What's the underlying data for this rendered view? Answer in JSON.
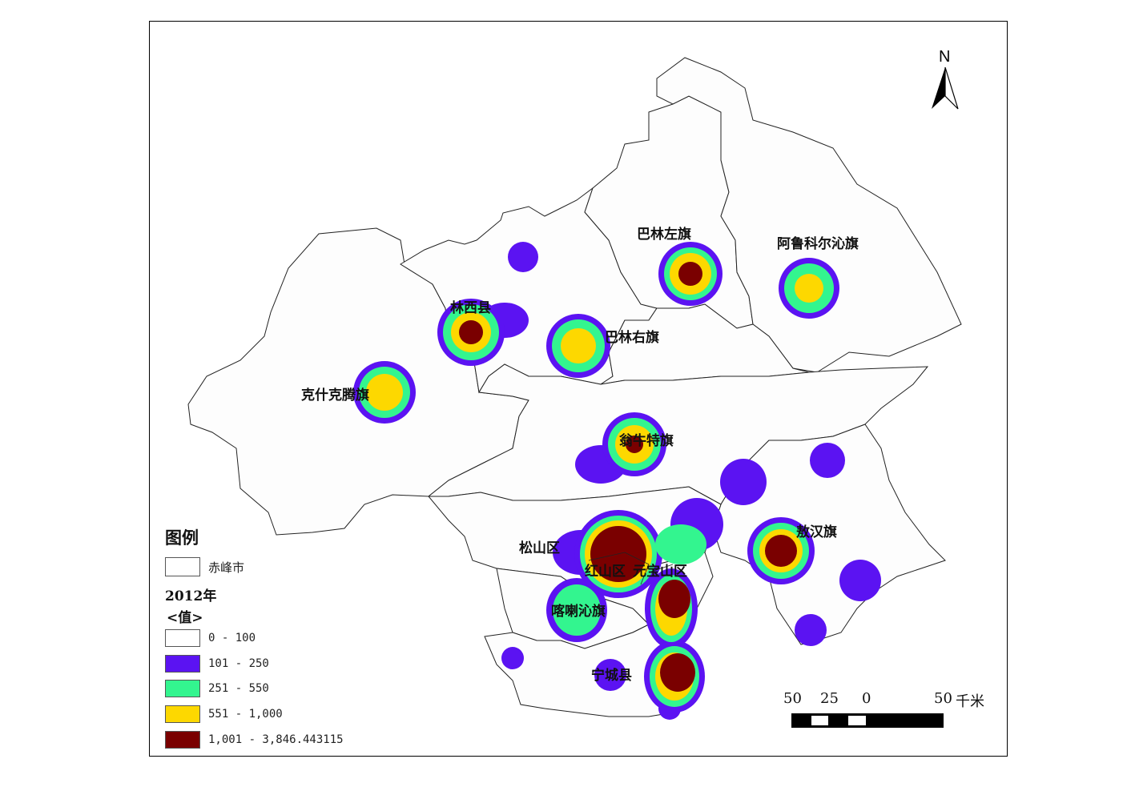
{
  "legend": {
    "title": "图例",
    "boundary_label": "赤峰市",
    "year_label": "2012年",
    "value_label": "<值>",
    "classes": [
      {
        "label": "0 - 100",
        "color": "#ffffff"
      },
      {
        "label": "101 - 250",
        "color": "#5b13f2"
      },
      {
        "label": "251 - 550",
        "color": "#33f58f"
      },
      {
        "label": "551 - 1,000",
        "color": "#fdd800"
      },
      {
        "label": "1,001 - 3,846.443115",
        "color": "#7a0000"
      }
    ]
  },
  "north_arrow": {
    "label": "N"
  },
  "scale_bar": {
    "ticks": [
      "50",
      "25",
      "0",
      "50"
    ],
    "unit": "千米"
  },
  "regions": [
    {
      "name": "巴林左旗"
    },
    {
      "name": "阿鲁科尔沁旗"
    },
    {
      "name": "林西县"
    },
    {
      "name": "巴林右旗"
    },
    {
      "name": "克什克腾旗"
    },
    {
      "name": "翁牛特旗"
    },
    {
      "name": "敖汉旗"
    },
    {
      "name": "松山区"
    },
    {
      "name": "红山区"
    },
    {
      "name": "元宝山区"
    },
    {
      "name": "喀喇沁旗"
    },
    {
      "name": "宁城县"
    }
  ]
}
